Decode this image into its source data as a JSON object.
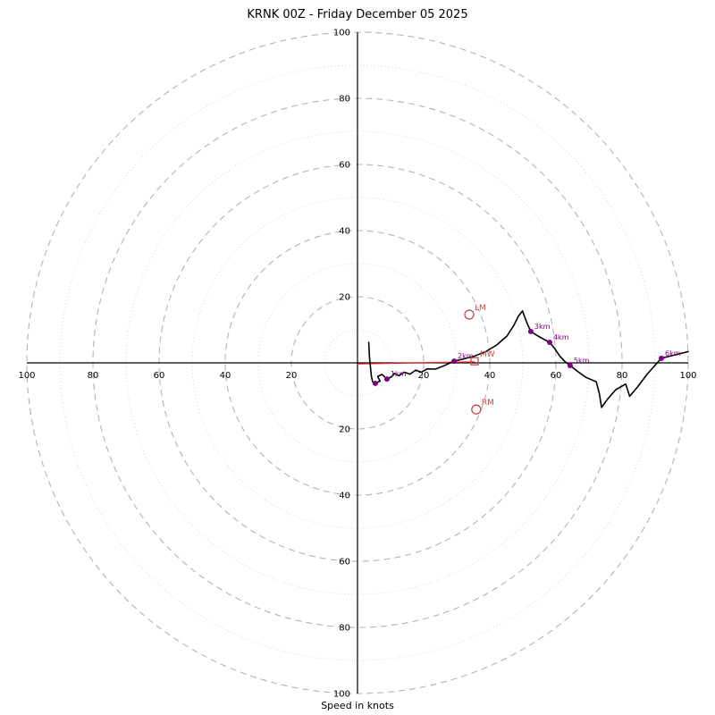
{
  "title": "KRNK 00Z - Friday December 05 2025",
  "xlabel": "Speed in knots",
  "chart_data": {
    "type": "line",
    "subtype": "hodograph",
    "title": "KRNK 00Z - Friday December 05 2025",
    "xlabel": "Speed in knots",
    "axis_range": [
      -100,
      100
    ],
    "rings_dashed": [
      20,
      40,
      60,
      80,
      100
    ],
    "rings_dotted": [
      10,
      30,
      50,
      70,
      90
    ],
    "axis_tick_labels": [
      "20",
      "40",
      "60",
      "80",
      "100"
    ],
    "grid": true,
    "legend": "none",
    "colors": {
      "trace": "#000000",
      "axis": "#000000",
      "ring_dashed": "#b3b3b3",
      "ring_dotted": "#cccccc",
      "km_marker": "#800080",
      "storm_line": "#e82020",
      "storm_marker": "#c44a4a",
      "tick_label": "#000000"
    },
    "trace_uv_knots": [
      [
        3.4,
        6.2
      ],
      [
        3.6,
        2.0
      ],
      [
        3.9,
        -1.0
      ],
      [
        4.2,
        -4.0
      ],
      [
        4.6,
        -5.8
      ],
      [
        5.4,
        -6.2
      ],
      [
        6.8,
        -5.5
      ],
      [
        6.1,
        -4.1
      ],
      [
        7.4,
        -3.5
      ],
      [
        8.9,
        -4.9
      ],
      [
        10.3,
        -4.2
      ],
      [
        11.1,
        -3.2
      ],
      [
        12.5,
        -3.9
      ],
      [
        14.1,
        -2.8
      ],
      [
        15.9,
        -3.4
      ],
      [
        17.6,
        -2.2
      ],
      [
        19.3,
        -2.8
      ],
      [
        21.1,
        -1.8
      ],
      [
        23.6,
        -1.9
      ],
      [
        26.1,
        -0.9
      ],
      [
        29.2,
        0.5
      ],
      [
        32.1,
        1.2
      ],
      [
        35.2,
        2.0
      ],
      [
        38.6,
        3.3
      ],
      [
        42.1,
        5.4
      ],
      [
        45.2,
        8.1
      ],
      [
        47.2,
        11.2
      ],
      [
        48.7,
        14.2
      ],
      [
        49.9,
        15.7
      ],
      [
        51.1,
        12.4
      ],
      [
        52.4,
        9.5
      ],
      [
        54.6,
        8.1
      ],
      [
        56.6,
        7.0
      ],
      [
        58.1,
        6.2
      ],
      [
        59.6,
        4.4
      ],
      [
        61.1,
        2.1
      ],
      [
        62.6,
        0.5
      ],
      [
        64.3,
        -0.8
      ],
      [
        66.6,
        -2.6
      ],
      [
        69.1,
        -4.4
      ],
      [
        72.2,
        -5.7
      ],
      [
        73.1,
        -9.2
      ],
      [
        73.8,
        -13.5
      ],
      [
        75.6,
        -11.0
      ],
      [
        78.1,
        -8.1
      ],
      [
        81.1,
        -6.4
      ],
      [
        82.3,
        -10.1
      ],
      [
        84.6,
        -7.4
      ],
      [
        87.6,
        -3.4
      ],
      [
        91.9,
        1.4
      ],
      [
        95.1,
        2.2
      ],
      [
        100.0,
        3.4
      ]
    ],
    "km_markers": [
      {
        "label": "",
        "u": 5.4,
        "v": -6.2
      },
      {
        "label": "1km",
        "u": 8.9,
        "v": -4.9
      },
      {
        "label": "2km",
        "u": 29.2,
        "v": 0.5
      },
      {
        "label": "3km",
        "u": 52.4,
        "v": 9.5
      },
      {
        "label": "4km",
        "u": 58.1,
        "v": 6.2
      },
      {
        "label": "5km",
        "u": 64.3,
        "v": -0.8
      },
      {
        "label": "6km",
        "u": 91.9,
        "v": 1.4
      }
    ],
    "storm_motion": {
      "vector_from": [
        0,
        -0.3
      ],
      "vector_to": [
        35.4,
        0.3
      ],
      "markers": [
        {
          "label": "LM",
          "shape": "circle",
          "u": 33.8,
          "v": 14.6
        },
        {
          "label": "MW",
          "shape": "square",
          "u": 35.4,
          "v": 0.5
        },
        {
          "label": "RM",
          "shape": "circle",
          "u": 35.9,
          "v": -14.1
        }
      ]
    }
  }
}
